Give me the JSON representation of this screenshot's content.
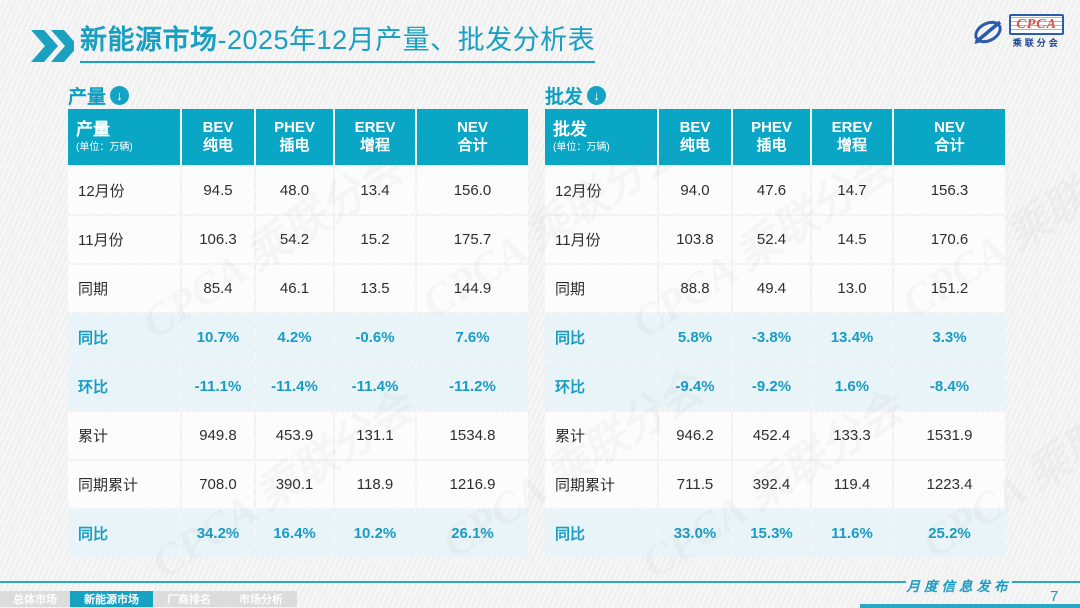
{
  "title": {
    "bold": "新能源市场",
    "rest": "-2025年12月产量、批发分析表"
  },
  "logo": {
    "name": "CPCA",
    "subtitle": "乘联分会"
  },
  "watermark_text": "CPCA 乘联分会",
  "colors": {
    "accent": "#14a3c4",
    "header_bg": "#0aa6c6",
    "highlight_row_bg": "#e9f4f8",
    "highlight_text": "#189cc4",
    "normal_text": "#2e2e2e",
    "logo_blue": "#2b5cab",
    "logo_red": "#d6544a"
  },
  "footer": {
    "publication": "月度信息发布",
    "page_number": "7",
    "tabs": [
      {
        "label": "总体市场",
        "active": false
      },
      {
        "label": "新能源市场",
        "active": true
      },
      {
        "label": "厂商排名",
        "active": false
      },
      {
        "label": "市场分析",
        "active": false
      }
    ]
  },
  "chart_data": [
    {
      "type": "table",
      "section_label": "产量",
      "header": {
        "title": "产量",
        "unit": "(单位：万辆)",
        "columns": [
          {
            "l1": "BEV",
            "l2": "纯电"
          },
          {
            "l1": "PHEV",
            "l2": "插电"
          },
          {
            "l1": "EREV",
            "l2": "增程"
          },
          {
            "l1": "NEV",
            "l2": "合计"
          }
        ]
      },
      "rows": [
        {
          "label": "12月份",
          "style": "normal",
          "values": [
            "94.5",
            "48.0",
            "13.4",
            "156.0"
          ]
        },
        {
          "label": "11月份",
          "style": "normal",
          "values": [
            "106.3",
            "54.2",
            "15.2",
            "175.7"
          ]
        },
        {
          "label": "同期",
          "style": "normal",
          "values": [
            "85.4",
            "46.1",
            "13.5",
            "144.9"
          ]
        },
        {
          "label": "同比",
          "style": "highlight",
          "values": [
            "10.7%",
            "4.2%",
            "-0.6%",
            "7.6%"
          ]
        },
        {
          "label": "环比",
          "style": "highlight",
          "values": [
            "-11.1%",
            "-11.4%",
            "-11.4%",
            "-11.2%"
          ]
        },
        {
          "label": "累计",
          "style": "normal",
          "values": [
            "949.8",
            "453.9",
            "131.1",
            "1534.8"
          ]
        },
        {
          "label": "同期累计",
          "style": "normal",
          "values": [
            "708.0",
            "390.1",
            "118.9",
            "1216.9"
          ]
        },
        {
          "label": "同比",
          "style": "highlight",
          "values": [
            "34.2%",
            "16.4%",
            "10.2%",
            "26.1%"
          ]
        }
      ]
    },
    {
      "type": "table",
      "section_label": "批发",
      "header": {
        "title": "批发",
        "unit": "(单位：万辆)",
        "columns": [
          {
            "l1": "BEV",
            "l2": "纯电"
          },
          {
            "l1": "PHEV",
            "l2": "插电"
          },
          {
            "l1": "EREV",
            "l2": "增程"
          },
          {
            "l1": "NEV",
            "l2": "合计"
          }
        ]
      },
      "rows": [
        {
          "label": "12月份",
          "style": "normal",
          "values": [
            "94.0",
            "47.6",
            "14.7",
            "156.3"
          ]
        },
        {
          "label": "11月份",
          "style": "normal",
          "values": [
            "103.8",
            "52.4",
            "14.5",
            "170.6"
          ]
        },
        {
          "label": "同期",
          "style": "normal",
          "values": [
            "88.8",
            "49.4",
            "13.0",
            "151.2"
          ]
        },
        {
          "label": "同比",
          "style": "highlight",
          "values": [
            "5.8%",
            "-3.8%",
            "13.4%",
            "3.3%"
          ]
        },
        {
          "label": "环比",
          "style": "highlight",
          "values": [
            "-9.4%",
            "-9.2%",
            "1.6%",
            "-8.4%"
          ]
        },
        {
          "label": "累计",
          "style": "normal",
          "values": [
            "946.2",
            "452.4",
            "133.3",
            "1531.9"
          ]
        },
        {
          "label": "同期累计",
          "style": "normal",
          "values": [
            "711.5",
            "392.4",
            "119.4",
            "1223.4"
          ]
        },
        {
          "label": "同比",
          "style": "highlight",
          "values": [
            "33.0%",
            "15.3%",
            "11.6%",
            "25.2%"
          ]
        }
      ]
    }
  ]
}
